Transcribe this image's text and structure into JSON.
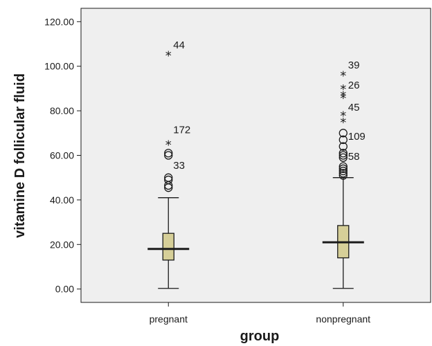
{
  "chart_data": {
    "type": "boxplot",
    "xlabel": "group",
    "ylabel": "vitamine D follicular fluid",
    "ylim": [
      -6,
      126
    ],
    "yticks": [
      0,
      20,
      40,
      60,
      80,
      100,
      120
    ],
    "ytick_labels": [
      "0.00",
      "20.00",
      "40.00",
      "60.00",
      "80.00",
      "100.00",
      "120.00"
    ],
    "categories": [
      "pregnant",
      "nonpregnant"
    ],
    "colors": {
      "plot_bg": "#efefef",
      "box_fill": "#d6cf98",
      "stroke": "#1a1a1a"
    },
    "grid": false,
    "boxes": [
      {
        "category": "pregnant",
        "whisker_low": 0.3,
        "q1": 13,
        "median": 18,
        "q3": 25,
        "whisker_high": 41,
        "outliers": [
          {
            "y": 45.5,
            "marker": "circle"
          },
          {
            "y": 46.5,
            "marker": "circle"
          },
          {
            "y": 49,
            "marker": "circle"
          },
          {
            "y": 50,
            "marker": "circle"
          },
          {
            "y": 60,
            "marker": "circle"
          },
          {
            "y": 61,
            "marker": "circle"
          },
          {
            "y": 65,
            "marker": "star"
          },
          {
            "y": 105,
            "marker": "star"
          }
        ],
        "labels": [
          {
            "text": "44",
            "y": 108
          },
          {
            "text": "172",
            "y": 70
          },
          {
            "text": "33",
            "y": 54
          }
        ]
      },
      {
        "category": "nonpregnant",
        "whisker_low": 0.3,
        "q1": 14,
        "median": 21,
        "q3": 28.5,
        "whisker_high": 50,
        "outliers": [
          {
            "y": 51,
            "marker": "circle"
          },
          {
            "y": 52,
            "marker": "circle"
          },
          {
            "y": 53,
            "marker": "circle"
          },
          {
            "y": 54,
            "marker": "circle"
          },
          {
            "y": 55,
            "marker": "circle"
          },
          {
            "y": 59,
            "marker": "circle"
          },
          {
            "y": 60,
            "marker": "circle"
          },
          {
            "y": 61,
            "marker": "circle"
          },
          {
            "y": 64,
            "marker": "circle"
          },
          {
            "y": 67,
            "marker": "circle"
          },
          {
            "y": 70,
            "marker": "circle"
          },
          {
            "y": 75,
            "marker": "star"
          },
          {
            "y": 78,
            "marker": "star"
          },
          {
            "y": 86,
            "marker": "star"
          },
          {
            "y": 87,
            "marker": "star"
          },
          {
            "y": 90,
            "marker": "star"
          },
          {
            "y": 96,
            "marker": "star"
          }
        ],
        "labels": [
          {
            "text": "39",
            "y": 99
          },
          {
            "text": "26",
            "y": 90
          },
          {
            "text": "45",
            "y": 80
          },
          {
            "text": "109",
            "y": 67
          },
          {
            "text": "58",
            "y": 58
          }
        ]
      }
    ]
  }
}
